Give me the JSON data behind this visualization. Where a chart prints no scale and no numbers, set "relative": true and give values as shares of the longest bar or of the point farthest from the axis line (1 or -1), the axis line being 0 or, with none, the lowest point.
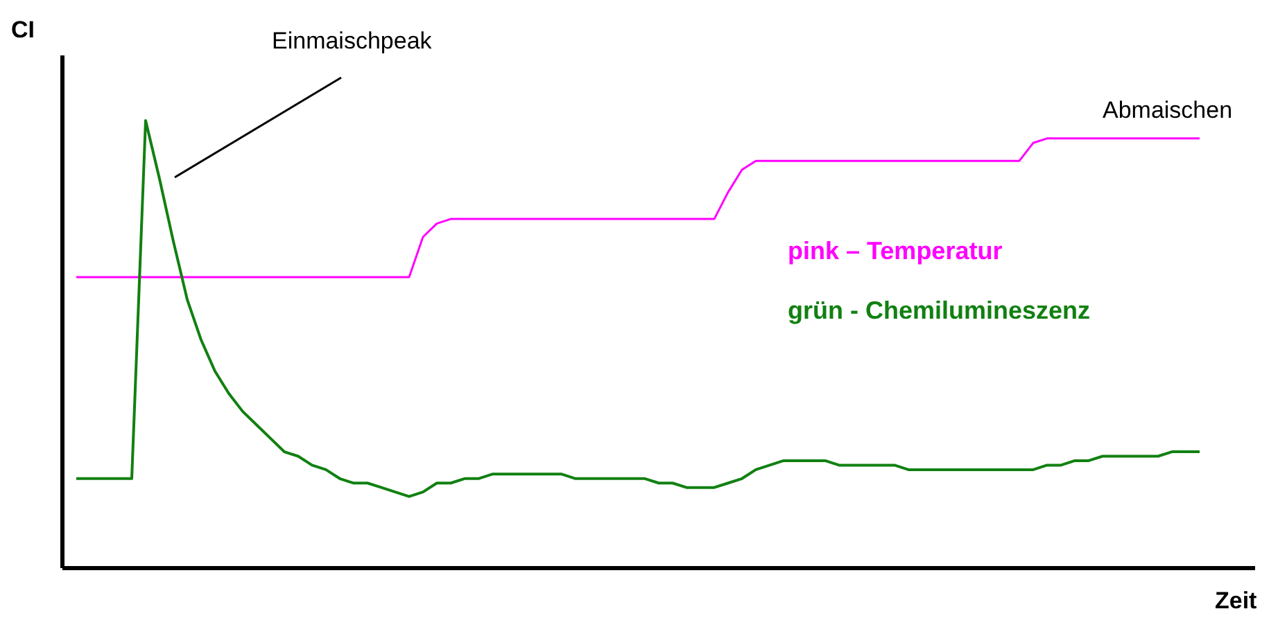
{
  "chart_data": {
    "type": "line",
    "relative": true,
    "ylabel": "CI",
    "xlabel": "Zeit",
    "annotations": [
      "Einmaischpeak",
      "Abmaischen"
    ],
    "marker": "none",
    "line_style": "solid",
    "categories": [
      null,
      null,
      null,
      null,
      null,
      null,
      null,
      null,
      null,
      null,
      null,
      null,
      null,
      null,
      null,
      null,
      null,
      null,
      null,
      null,
      null,
      null,
      null,
      null,
      null,
      null,
      null,
      null,
      null,
      null,
      null,
      null,
      null,
      null,
      null,
      null,
      null,
      null,
      null,
      null,
      null,
      null,
      null,
      null,
      null,
      null,
      null,
      null,
      null,
      null,
      null,
      null,
      null,
      null,
      null,
      null,
      null,
      null,
      null,
      null,
      null,
      null,
      null,
      null,
      null,
      null,
      null,
      null,
      null,
      null,
      null,
      null,
      null,
      null,
      null,
      null,
      null,
      null,
      null,
      null,
      null,
      null
    ],
    "series": [
      {
        "name": "pink – Temperatur",
        "color": "#ff00ff",
        "values": [
          0.65,
          0.65,
          0.65,
          0.65,
          0.65,
          0.65,
          0.65,
          0.65,
          0.65,
          0.65,
          0.65,
          0.65,
          0.65,
          0.65,
          0.65,
          0.65,
          0.65,
          0.65,
          0.65,
          0.65,
          0.65,
          0.65,
          0.65,
          0.65,
          0.65,
          0.74,
          0.77,
          0.78,
          0.78,
          0.78,
          0.78,
          0.78,
          0.78,
          0.78,
          0.78,
          0.78,
          0.78,
          0.78,
          0.78,
          0.78,
          0.78,
          0.78,
          0.78,
          0.78,
          0.78,
          0.78,
          0.78,
          0.84,
          0.89,
          0.91,
          0.91,
          0.91,
          0.91,
          0.91,
          0.91,
          0.91,
          0.91,
          0.91,
          0.91,
          0.91,
          0.91,
          0.91,
          0.91,
          0.91,
          0.91,
          0.91,
          0.91,
          0.91,
          0.91,
          0.95,
          0.96,
          0.96,
          0.96,
          0.96,
          0.96,
          0.96,
          0.96,
          0.96,
          0.96,
          0.96,
          0.96,
          0.96
        ]
      },
      {
        "name": "grün - Chemilumineszenz",
        "color": "#118011",
        "values": [
          0.2,
          0.2,
          0.2,
          0.2,
          0.2,
          1,
          0.87,
          0.73,
          0.6,
          0.51,
          0.44,
          0.39,
          0.35,
          0.32,
          0.29,
          0.26,
          0.25,
          0.23,
          0.22,
          0.2,
          0.19,
          0.19,
          0.18,
          0.17,
          0.16,
          0.17,
          0.19,
          0.19,
          0.2,
          0.2,
          0.21,
          0.21,
          0.21,
          0.21,
          0.21,
          0.21,
          0.2,
          0.2,
          0.2,
          0.2,
          0.2,
          0.2,
          0.19,
          0.19,
          0.18,
          0.18,
          0.18,
          0.19,
          0.2,
          0.22,
          0.23,
          0.24,
          0.24,
          0.24,
          0.24,
          0.23,
          0.23,
          0.23,
          0.23,
          0.23,
          0.22,
          0.22,
          0.22,
          0.22,
          0.22,
          0.22,
          0.22,
          0.22,
          0.22,
          0.22,
          0.23,
          0.23,
          0.24,
          0.24,
          0.25,
          0.25,
          0.25,
          0.25,
          0.25,
          0.26,
          0.26,
          0.26
        ]
      }
    ]
  }
}
